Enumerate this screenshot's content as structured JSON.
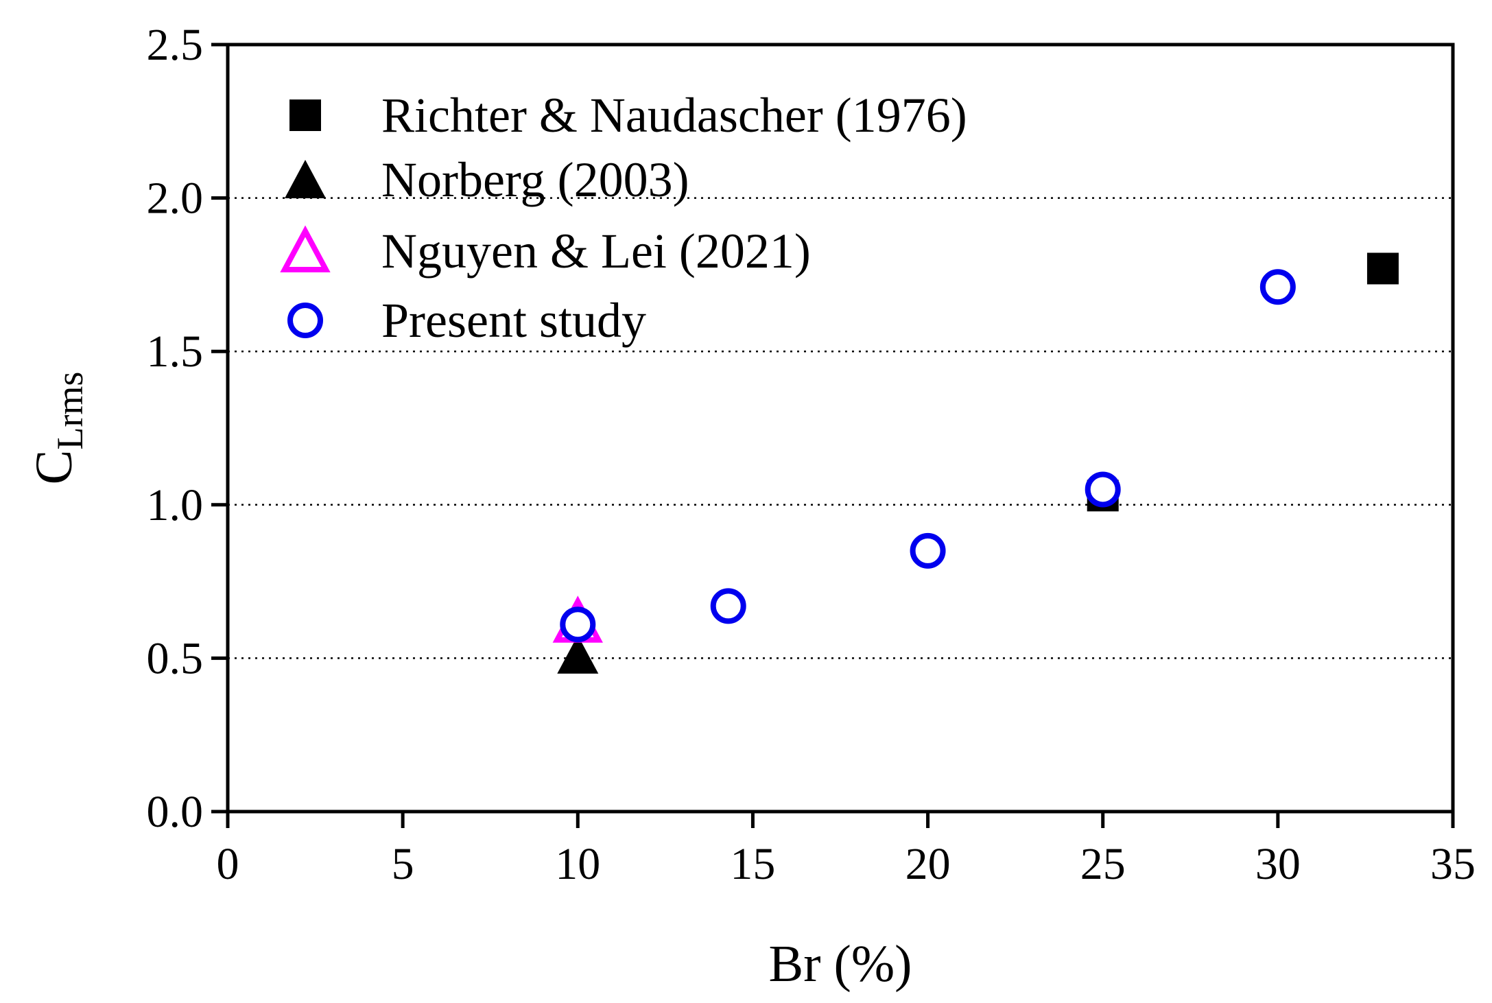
{
  "chart_data": {
    "type": "scatter",
    "xlabel": "Br (%)",
    "ylabel": {
      "main": "C",
      "sub": "Lrms"
    },
    "xlim": [
      0,
      35
    ],
    "ylim": [
      0,
      2.5
    ],
    "xticks": [
      "0",
      "5",
      "10",
      "15",
      "20",
      "25",
      "30",
      "35"
    ],
    "yticks": [
      "0.0",
      "0.5",
      "1.0",
      "1.5",
      "2.0",
      "2.5"
    ],
    "grid": "horizontal dotted at 0.5, 1.0, 1.5, 2.0",
    "legend_position": "top-left",
    "series": [
      {
        "name": "Richter & Naudascher (1976)",
        "marker": "square-filled",
        "color": "#000000",
        "points": [
          {
            "x": 25,
            "y": 1.03
          },
          {
            "x": 33,
            "y": 1.77
          }
        ]
      },
      {
        "name": "Norberg (2003)",
        "marker": "triangle-filled",
        "color": "#000000",
        "points": [
          {
            "x": 10,
            "y": 0.51
          }
        ]
      },
      {
        "name": "Nguyen & Lei (2021)",
        "marker": "triangle-open",
        "color": "#ff00ff",
        "points": [
          {
            "x": 10,
            "y": 0.62
          }
        ]
      },
      {
        "name": "Present study",
        "marker": "circle-open",
        "color": "#0000ee",
        "points": [
          {
            "x": 10,
            "y": 0.61
          },
          {
            "x": 14.3,
            "y": 0.67
          },
          {
            "x": 20,
            "y": 0.85
          },
          {
            "x": 25,
            "y": 1.05
          },
          {
            "x": 30,
            "y": 1.71
          }
        ]
      }
    ]
  }
}
